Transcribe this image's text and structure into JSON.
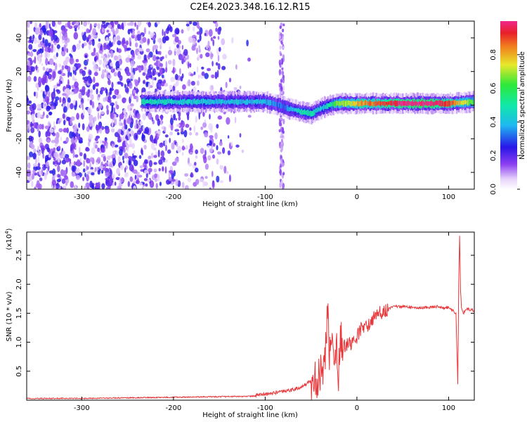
{
  "figure": {
    "title": "C2E4.2023.348.16.12.R15"
  },
  "chart_data": [
    {
      "type": "heatmap",
      "title": "C2E4.2023.348.16.12.R15",
      "xlabel": "Height of straight line (km)",
      "ylabel": "Frequency (Hz)",
      "xlim": [
        -360,
        128
      ],
      "ylim": [
        -50,
        50
      ],
      "xticks": [
        -300,
        -200,
        -100,
        0,
        100
      ],
      "yticks": [
        -40,
        -20,
        0,
        20,
        40
      ],
      "colorbar": {
        "label": "Normalized spectral amplitude",
        "ticks": [
          0.0,
          0.2,
          0.4,
          0.6,
          0.8
        ],
        "range": [
          0,
          1
        ],
        "colormap": "rainbow (purple to red)"
      },
      "ridge": {
        "description": "Narrow band of high amplitude centred near 0 Hz from about -235 km to 128 km; broadband noise below -235 km",
        "x": [
          -235,
          -200,
          -150,
          -100,
          -85,
          -75,
          -60,
          -50,
          -40,
          -30,
          -20,
          -10,
          0,
          50,
          80,
          100,
          128
        ],
        "frequency": [
          2,
          2,
          2,
          2,
          0,
          -2,
          -4,
          -5,
          -2,
          0,
          1,
          1,
          1,
          1,
          1,
          1,
          2
        ],
        "peak_amplitude": [
          0.5,
          0.45,
          0.4,
          0.4,
          0.3,
          0.35,
          0.5,
          0.5,
          0.4,
          0.5,
          0.7,
          0.7,
          0.8,
          1.0,
          1.0,
          0.9,
          0.6
        ]
      },
      "colors": {
        "low": "#c9a7f7",
        "mid_low": "#6f17e6",
        "mid": "#1fe0d2",
        "high": "#e5202a"
      }
    },
    {
      "type": "line",
      "xlabel": "Height of straight line (km)",
      "ylabel": "SNR (10 * v/v)",
      "y_multiplier": "(x10",
      "y_multiplier_exp": "4",
      "y_multiplier_close": ")",
      "xlim": [
        -360,
        128
      ],
      "ylim": [
        0,
        2.9
      ],
      "xticks": [
        -300,
        -200,
        -100,
        0,
        100
      ],
      "yticks": [
        0.5,
        1.0,
        1.5,
        2.0,
        2.5
      ],
      "series": [
        {
          "color": "#e8363a",
          "x": [
            -360,
            -300,
            -250,
            -200,
            -150,
            -110,
            -100,
            -90,
            -80,
            -70,
            -60,
            -55,
            -50,
            -45,
            -40,
            -35,
            -32,
            -30,
            -28,
            -25,
            -22,
            -20,
            -18,
            -15,
            -10,
            -5,
            0,
            5,
            10,
            15,
            20,
            25,
            30,
            35,
            40,
            50,
            60,
            70,
            80,
            90,
            95,
            100,
            105,
            108,
            110,
            111,
            112,
            113,
            114,
            116,
            120,
            128
          ],
          "y": [
            0.02,
            0.02,
            0.03,
            0.04,
            0.05,
            0.06,
            0.07,
            0.1,
            0.12,
            0.15,
            0.2,
            0.25,
            0.3,
            0.35,
            0.45,
            0.6,
            1.65,
            0.8,
            1.1,
            0.75,
            0.9,
            0.5,
            1.2,
            0.95,
            0.95,
            1.0,
            1.1,
            1.25,
            1.25,
            1.35,
            1.45,
            1.5,
            1.55,
            1.58,
            1.62,
            1.62,
            1.6,
            1.6,
            1.6,
            1.62,
            1.58,
            1.6,
            1.55,
            1.5,
            0.3,
            2.0,
            2.85,
            1.9,
            1.6,
            1.5,
            1.57,
            1.55
          ]
        }
      ]
    }
  ]
}
